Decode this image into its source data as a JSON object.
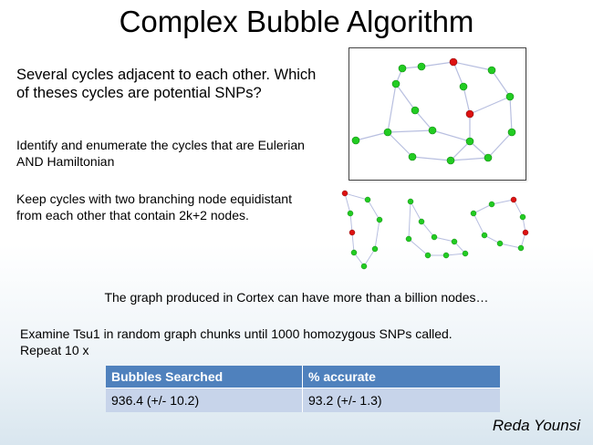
{
  "slide": {
    "title": "Complex Bubble Algorithm",
    "question": "Several cycles adjacent to each other. Which of theses cycles are potential SNPs?",
    "paragraph1": "Identify and enumerate the cycles that are Eulerian AND Hamiltonian",
    "paragraph2": "Keep cycles with two branching node equidistant from each other that contain 2k+2 nodes.",
    "cortex_note": "The graph produced in Cortex can have more than a billion nodes…",
    "examine": "Examine Tsu1 in random graph chunks until 1000 homozygous SNPs called.",
    "repeat": "Repeat 10 x",
    "author": "Reda Younsi"
  },
  "table": {
    "headers": [
      "Bubbles Searched",
      "% accurate"
    ],
    "row": [
      "936.4 (+/- 10.2)",
      "93.2 (+/- 1.3)"
    ]
  },
  "colors": {
    "node_green": "#22cc22",
    "node_red": "#dd1111",
    "edge": "#b8bfe0",
    "table_header": "#4f81bd",
    "table_cell": "#c7d4ea"
  }
}
